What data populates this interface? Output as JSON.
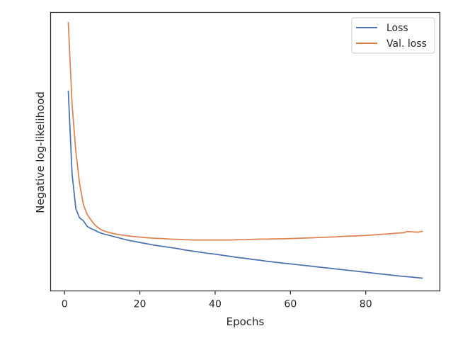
{
  "chart_data": {
    "type": "line",
    "title": "",
    "xlabel": "Epochs",
    "ylabel": "Negative log-likelihood",
    "xlim": [
      -3.7,
      99.7
    ],
    "ylim": [
      0.0,
      1.0
    ],
    "y_ticks_shown": false,
    "x_ticks": [
      0,
      20,
      40,
      60,
      80
    ],
    "x_tick_labels": [
      "0",
      "20",
      "40",
      "60",
      "80"
    ],
    "grid": false,
    "legend_position": "top-right",
    "series": [
      {
        "name": "Loss",
        "color": "#4c72b0",
        "x": [
          1,
          2,
          3,
          4,
          5,
          6,
          7,
          8,
          9,
          10,
          12,
          14,
          16,
          18,
          20,
          22,
          24,
          26,
          28,
          30,
          32,
          34,
          36,
          38,
          40,
          42,
          44,
          46,
          48,
          50,
          52,
          54,
          56,
          58,
          60,
          62,
          64,
          66,
          68,
          70,
          72,
          74,
          76,
          78,
          80,
          82,
          84,
          86,
          88,
          90,
          92,
          94,
          95
        ],
        "y": [
          0.717,
          0.42,
          0.295,
          0.262,
          0.252,
          0.232,
          0.224,
          0.218,
          0.211,
          0.206,
          0.199,
          0.192,
          0.185,
          0.179,
          0.174,
          0.169,
          0.164,
          0.16,
          0.156,
          0.152,
          0.147,
          0.143,
          0.139,
          0.135,
          0.132,
          0.128,
          0.124,
          0.12,
          0.117,
          0.113,
          0.11,
          0.106,
          0.103,
          0.1,
          0.097,
          0.094,
          0.091,
          0.088,
          0.085,
          0.082,
          0.079,
          0.076,
          0.073,
          0.07,
          0.067,
          0.064,
          0.061,
          0.058,
          0.055,
          0.052,
          0.05,
          0.047,
          0.046
        ]
      },
      {
        "name": "Val. loss",
        "color": "#dd8452",
        "x": [
          1,
          2,
          3,
          4,
          5,
          6,
          7,
          8,
          9,
          10,
          11,
          12,
          14,
          16,
          18,
          20,
          22,
          24,
          26,
          28,
          30,
          32,
          34,
          36,
          38,
          40,
          42,
          44,
          46,
          48,
          50,
          52,
          54,
          56,
          58,
          60,
          62,
          64,
          66,
          68,
          70,
          72,
          74,
          76,
          78,
          80,
          82,
          84,
          86,
          88,
          90,
          91,
          92,
          94,
          95
        ],
        "y": [
          0.963,
          0.67,
          0.5,
          0.385,
          0.31,
          0.275,
          0.255,
          0.238,
          0.226,
          0.218,
          0.213,
          0.209,
          0.203,
          0.199,
          0.196,
          0.193,
          0.191,
          0.189,
          0.188,
          0.186,
          0.185,
          0.184,
          0.183,
          0.183,
          0.183,
          0.183,
          0.183,
          0.183,
          0.184,
          0.184,
          0.185,
          0.186,
          0.186,
          0.187,
          0.187,
          0.188,
          0.189,
          0.19,
          0.191,
          0.192,
          0.193,
          0.194,
          0.196,
          0.197,
          0.198,
          0.199,
          0.201,
          0.203,
          0.205,
          0.207,
          0.209,
          0.213,
          0.212,
          0.211,
          0.214
        ]
      }
    ]
  }
}
